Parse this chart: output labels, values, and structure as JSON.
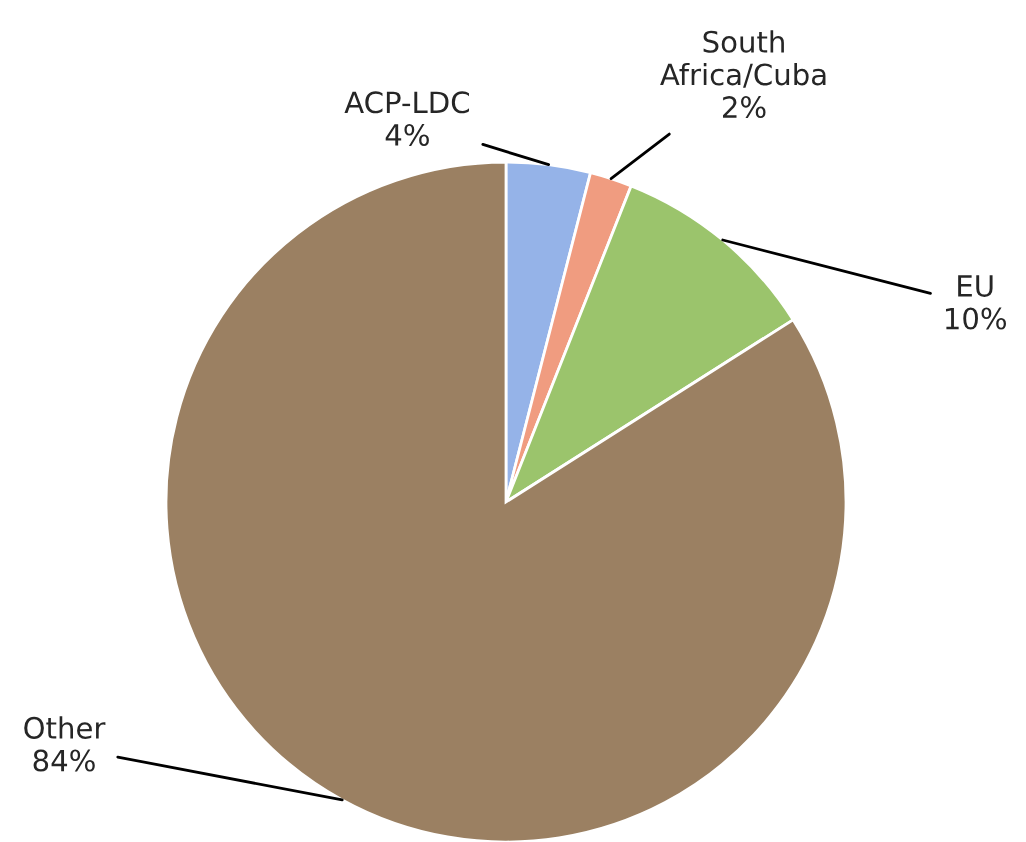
{
  "chart_data": {
    "type": "pie",
    "categories": [
      "ACP-LDC",
      "South Africa/Cuba",
      "EU",
      "Other"
    ],
    "values": [
      4,
      2,
      10,
      84
    ],
    "value_labels": [
      "4%",
      "2%",
      "10%",
      "84%"
    ],
    "colors": [
      "#95b3e8",
      "#f09c80",
      "#9bc46c",
      "#9b8062"
    ]
  }
}
